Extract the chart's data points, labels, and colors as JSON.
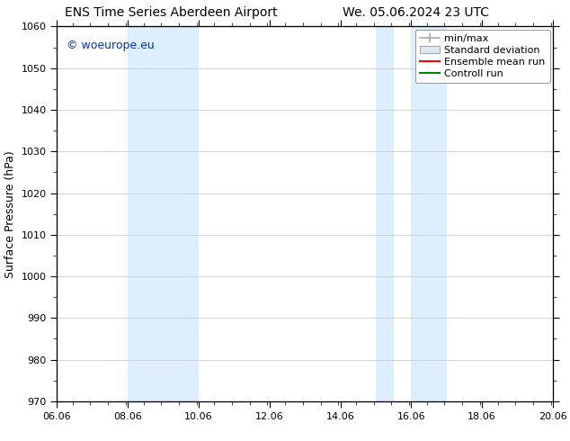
{
  "title_left": "ENS Time Series Aberdeen Airport",
  "title_right": "We. 05.06.2024 23 UTC",
  "ylabel": "Surface Pressure (hPa)",
  "ylim": [
    970,
    1060
  ],
  "yticks": [
    970,
    980,
    990,
    1000,
    1010,
    1020,
    1030,
    1040,
    1050,
    1060
  ],
  "xticks_major": [
    6.06,
    8.06,
    10.06,
    12.06,
    14.06,
    16.06,
    18.06,
    20.06
  ],
  "xticklabels": [
    "06.06",
    "08.06",
    "10.06",
    "12.06",
    "14.06",
    "16.06",
    "18.06",
    "20.06"
  ],
  "shaded_bands": [
    {
      "x_start": 8.06,
      "x_end": 10.06
    },
    {
      "x_start": 15.06,
      "x_end": 15.56
    },
    {
      "x_start": 16.06,
      "x_end": 17.06
    }
  ],
  "shade_color": "#ddeeff",
  "watermark_text": "© woeurope.eu",
  "watermark_color": "#0033cc",
  "legend_entries": [
    {
      "label": "min/max"
    },
    {
      "label": "Standard deviation"
    },
    {
      "label": "Ensemble mean run"
    },
    {
      "label": "Controll run"
    }
  ],
  "bg_color": "#ffffff",
  "plot_bg_color": "#ffffff",
  "title_fontsize": 10,
  "ylabel_fontsize": 9,
  "tick_fontsize": 8,
  "legend_fontsize": 8,
  "watermark_fontsize": 9,
  "grid_color": "#cccccc",
  "spine_color": "#000000",
  "minmax_color": "#aaaaaa",
  "std_color": "#cccccc",
  "ens_color": "#ff0000",
  "ctrl_color": "#008800"
}
